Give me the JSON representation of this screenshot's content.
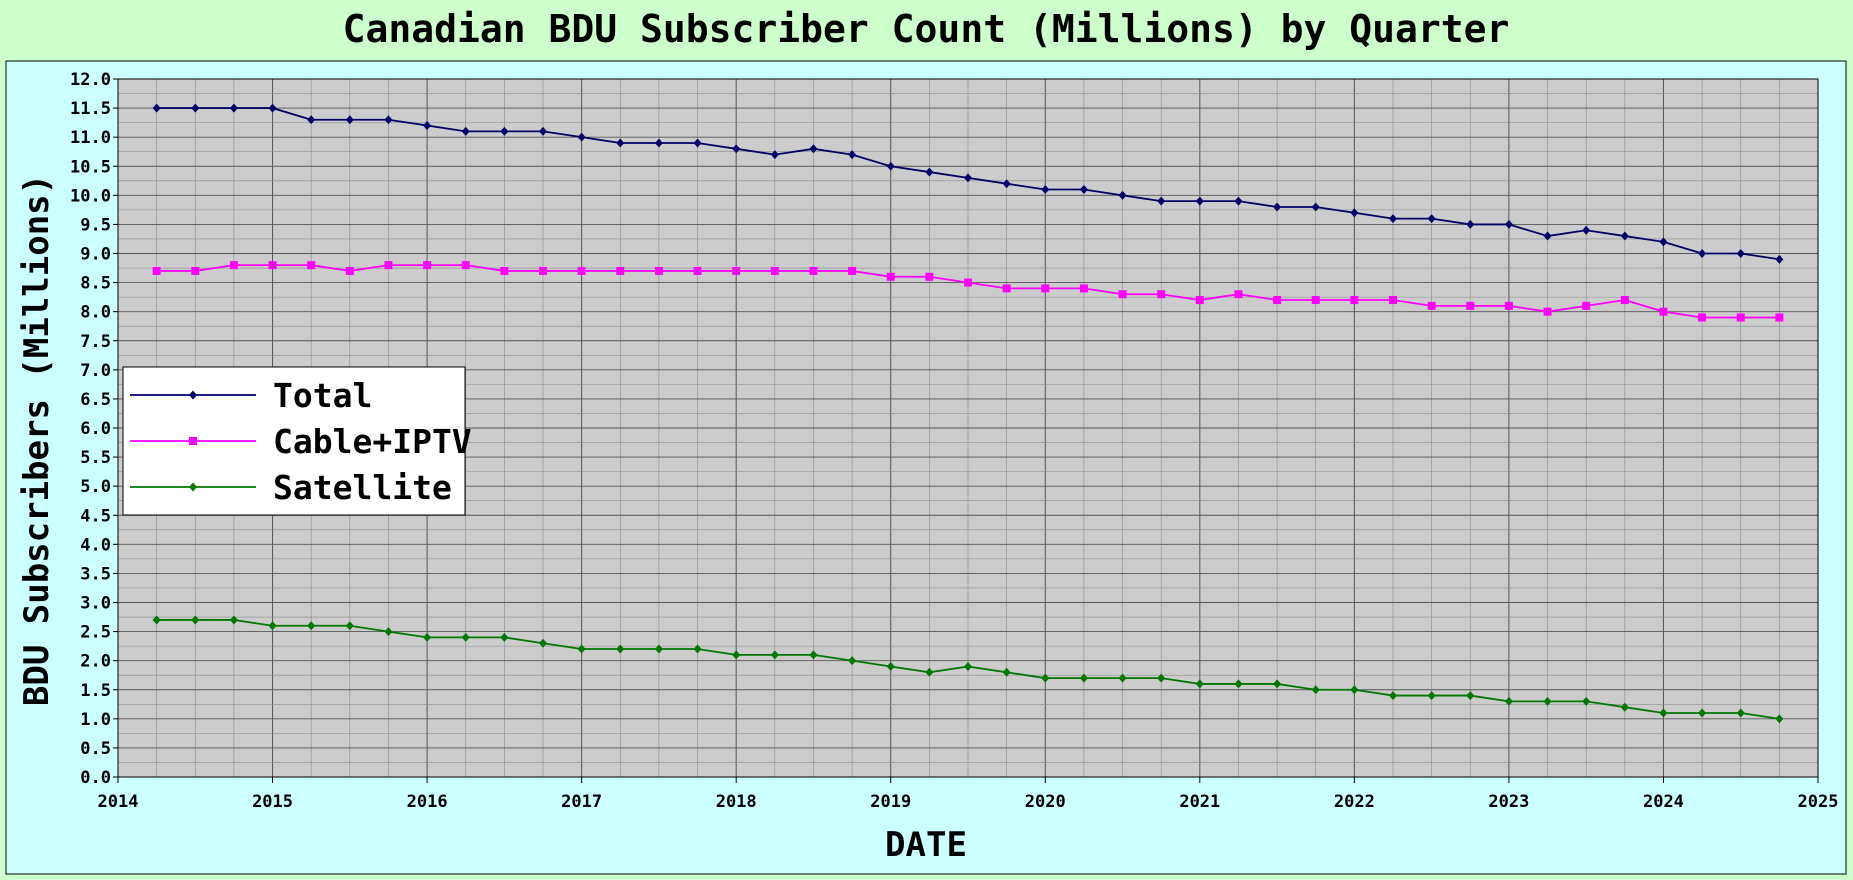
{
  "chart_data": {
    "type": "line",
    "title": "Canadian BDU Subscriber Count (Millions) by Quarter",
    "xlabel": "DATE",
    "ylabel": "BDU Subscribers (Millions)",
    "xlim": [
      2014,
      2025
    ],
    "ylim": [
      0,
      12
    ],
    "x_ticks": [
      "2014",
      "2015",
      "2016",
      "2017",
      "2018",
      "2019",
      "2020",
      "2021",
      "2022",
      "2023",
      "2024",
      "2025"
    ],
    "y_ticks": [
      "0.0",
      "0.5",
      "1.0",
      "1.5",
      "2.0",
      "2.5",
      "3.0",
      "3.5",
      "4.0",
      "4.5",
      "5.0",
      "5.5",
      "6.0",
      "6.5",
      "7.0",
      "7.5",
      "8.0",
      "8.5",
      "9.0",
      "9.5",
      "10.0",
      "10.5",
      "11.0",
      "11.5",
      "12.0"
    ],
    "grid": true,
    "legend_position": "left-middle",
    "colors": {
      "page_background": "#ccffcc",
      "frame_background": "#ccffff",
      "plot_background": "#cccccc",
      "grid_major": "#555555",
      "grid_minor": "#8a8a8a"
    },
    "x": [
      2014.25,
      2014.5,
      2014.75,
      2015.0,
      2015.25,
      2015.5,
      2015.75,
      2016.0,
      2016.25,
      2016.5,
      2016.75,
      2017.0,
      2017.25,
      2017.5,
      2017.75,
      2018.0,
      2018.25,
      2018.5,
      2018.75,
      2019.0,
      2019.25,
      2019.5,
      2019.75,
      2020.0,
      2020.25,
      2020.5,
      2020.75,
      2021.0,
      2021.25,
      2021.5,
      2021.75,
      2022.0,
      2022.25,
      2022.5,
      2022.75,
      2023.0,
      2023.25,
      2023.5,
      2023.75,
      2024.0,
      2024.25,
      2024.5,
      2024.75
    ],
    "series": [
      {
        "name": "Total",
        "color": "#000066",
        "marker": "diamond",
        "values": [
          11.5,
          11.5,
          11.5,
          11.5,
          11.3,
          11.3,
          11.3,
          11.2,
          11.1,
          11.1,
          11.1,
          11.0,
          10.9,
          10.9,
          10.9,
          10.8,
          10.7,
          10.8,
          10.7,
          10.5,
          10.4,
          10.3,
          10.2,
          10.1,
          10.1,
          10.0,
          9.9,
          9.9,
          9.9,
          9.8,
          9.8,
          9.7,
          9.6,
          9.6,
          9.5,
          9.5,
          9.3,
          9.4,
          9.3,
          9.2,
          9.0,
          9.0,
          8.9
        ]
      },
      {
        "name": "Cable+IPTV",
        "color": "#ff00ff",
        "marker": "square",
        "values": [
          8.7,
          8.7,
          8.8,
          8.8,
          8.8,
          8.7,
          8.8,
          8.8,
          8.8,
          8.7,
          8.7,
          8.7,
          8.7,
          8.7,
          8.7,
          8.7,
          8.7,
          8.7,
          8.7,
          8.6,
          8.6,
          8.5,
          8.4,
          8.4,
          8.4,
          8.3,
          8.3,
          8.2,
          8.3,
          8.2,
          8.2,
          8.2,
          8.2,
          8.1,
          8.1,
          8.1,
          8.0,
          8.1,
          8.2,
          8.0,
          7.9,
          7.9,
          7.9
        ]
      },
      {
        "name": "Satellite",
        "color": "#007700",
        "marker": "diamond",
        "values": [
          2.7,
          2.7,
          2.7,
          2.6,
          2.6,
          2.6,
          2.5,
          2.4,
          2.4,
          2.4,
          2.3,
          2.2,
          2.2,
          2.2,
          2.2,
          2.1,
          2.1,
          2.1,
          2.0,
          1.9,
          1.8,
          1.9,
          1.8,
          1.7,
          1.7,
          1.7,
          1.7,
          1.6,
          1.6,
          1.6,
          1.5,
          1.5,
          1.4,
          1.4,
          1.4,
          1.3,
          1.3,
          1.3,
          1.2,
          1.1,
          1.1,
          1.1,
          1.0
        ]
      }
    ]
  }
}
